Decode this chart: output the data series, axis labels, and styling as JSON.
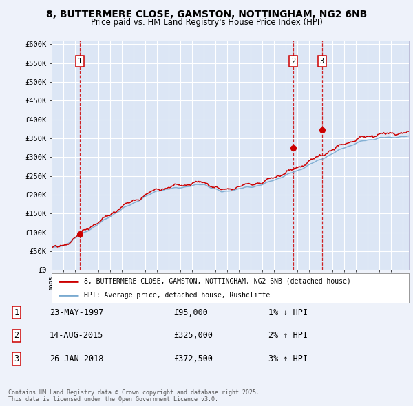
{
  "title": "8, BUTTERMERE CLOSE, GAMSTON, NOTTINGHAM, NG2 6NB",
  "subtitle": "Price paid vs. HM Land Registry's House Price Index (HPI)",
  "ylim": [
    0,
    600000
  ],
  "xlim_start": 1995.0,
  "xlim_end": 2025.5,
  "sale_dates": [
    1997.39,
    2015.62,
    2018.07
  ],
  "sale_prices": [
    95000,
    325000,
    372500
  ],
  "sale_labels": [
    "1",
    "2",
    "3"
  ],
  "legend_line1": "8, BUTTERMERE CLOSE, GAMSTON, NOTTINGHAM, NG2 6NB (detached house)",
  "legend_line2": "HPI: Average price, detached house, Rushcliffe",
  "table_rows": [
    {
      "label": "1",
      "date": "23-MAY-1997",
      "price": "£95,000",
      "hpi": "1% ↓ HPI"
    },
    {
      "label": "2",
      "date": "14-AUG-2015",
      "price": "£325,000",
      "hpi": "2% ↑ HPI"
    },
    {
      "label": "3",
      "date": "26-JAN-2018",
      "price": "£372,500",
      "hpi": "3% ↑ HPI"
    }
  ],
  "footer": "Contains HM Land Registry data © Crown copyright and database right 2025.\nThis data is licensed under the Open Government Licence v3.0.",
  "bg_color": "#eef2fa",
  "plot_bg_color": "#dce6f5",
  "grid_color": "#ffffff",
  "red_line_color": "#cc0000",
  "blue_line_color": "#7aaad0",
  "dashed_line_color": "#cc0000",
  "marker_color": "#cc0000",
  "title_fontsize": 10,
  "subtitle_fontsize": 8.5
}
